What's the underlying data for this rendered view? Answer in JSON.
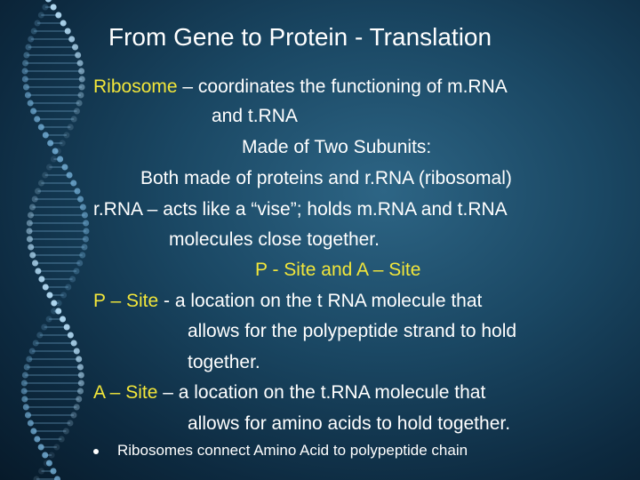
{
  "title": "From Gene to Protein - Translation",
  "lines": [
    {
      "parts": [
        {
          "text": "Ribosome",
          "color": "#f2e63a"
        },
        {
          "text": " – coordinates the functioning of m.RNA"
        }
      ]
    },
    {
      "parts": [
        {
          "text": "and t.RNA"
        }
      ]
    },
    {
      "parts": [
        {
          "text": "Made of Two Subunits:"
        }
      ]
    },
    {
      "parts": [
        {
          "text": "Both made of proteins and r.RNA (ribosomal)"
        }
      ]
    },
    {
      "parts": [
        {
          "text": "r.RNA – acts like a “vise”; holds m.RNA and t.RNA"
        }
      ]
    },
    {
      "parts": [
        {
          "text": "molecules close together."
        }
      ]
    },
    {
      "parts": [
        {
          "text": "P - Site and A – Site",
          "color": "#f2e63a"
        }
      ]
    },
    {
      "parts": [
        {
          "text": "P – Site",
          "color": "#f2e63a"
        },
        {
          "text": " - a location on the t RNA molecule that"
        }
      ]
    },
    {
      "parts": [
        {
          "text": "allows for the polypeptide strand to hold"
        }
      ]
    },
    {
      "parts": [
        {
          "text": "together."
        }
      ]
    },
    {
      "parts": [
        {
          "text": "A – Site",
          "color": "#f2e63a"
        },
        {
          "text": " – a location on the t.RNA molecule that"
        }
      ]
    },
    {
      "parts": [
        {
          "text": "allows for amino acids to hold together."
        }
      ]
    }
  ],
  "bullet": "Ribosomes connect Amino Acid to polypeptide chain"
}
